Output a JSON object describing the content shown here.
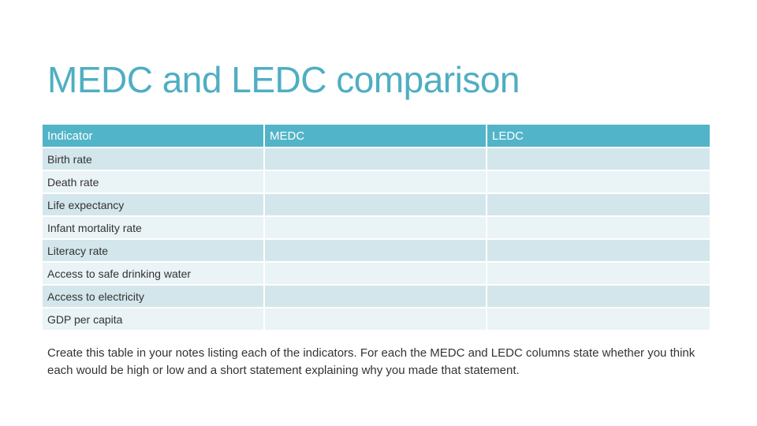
{
  "title": "MEDC and LEDC comparison",
  "table": {
    "headers": [
      "Indicator",
      "MEDC",
      "LEDC"
    ],
    "rows": [
      [
        "Birth rate",
        "",
        ""
      ],
      [
        "Death rate",
        "",
        ""
      ],
      [
        "Life expectancy",
        "",
        ""
      ],
      [
        "Infant mortality rate",
        "",
        ""
      ],
      [
        "Literacy rate",
        "",
        ""
      ],
      [
        "Access to safe drinking water",
        "",
        ""
      ],
      [
        "Access to electricity",
        "",
        ""
      ],
      [
        "GDP per capita",
        "",
        ""
      ]
    ]
  },
  "instructions": "Create this table in your notes listing each of the indicators.  For each the MEDC and LEDC columns state whether you think each would be high or low and a short statement explaining why you made that statement.",
  "colors": {
    "title": "#4faec2",
    "header_bg": "#52b4c8",
    "row_dark": "#d3e6ec",
    "row_light": "#eaf3f6"
  }
}
